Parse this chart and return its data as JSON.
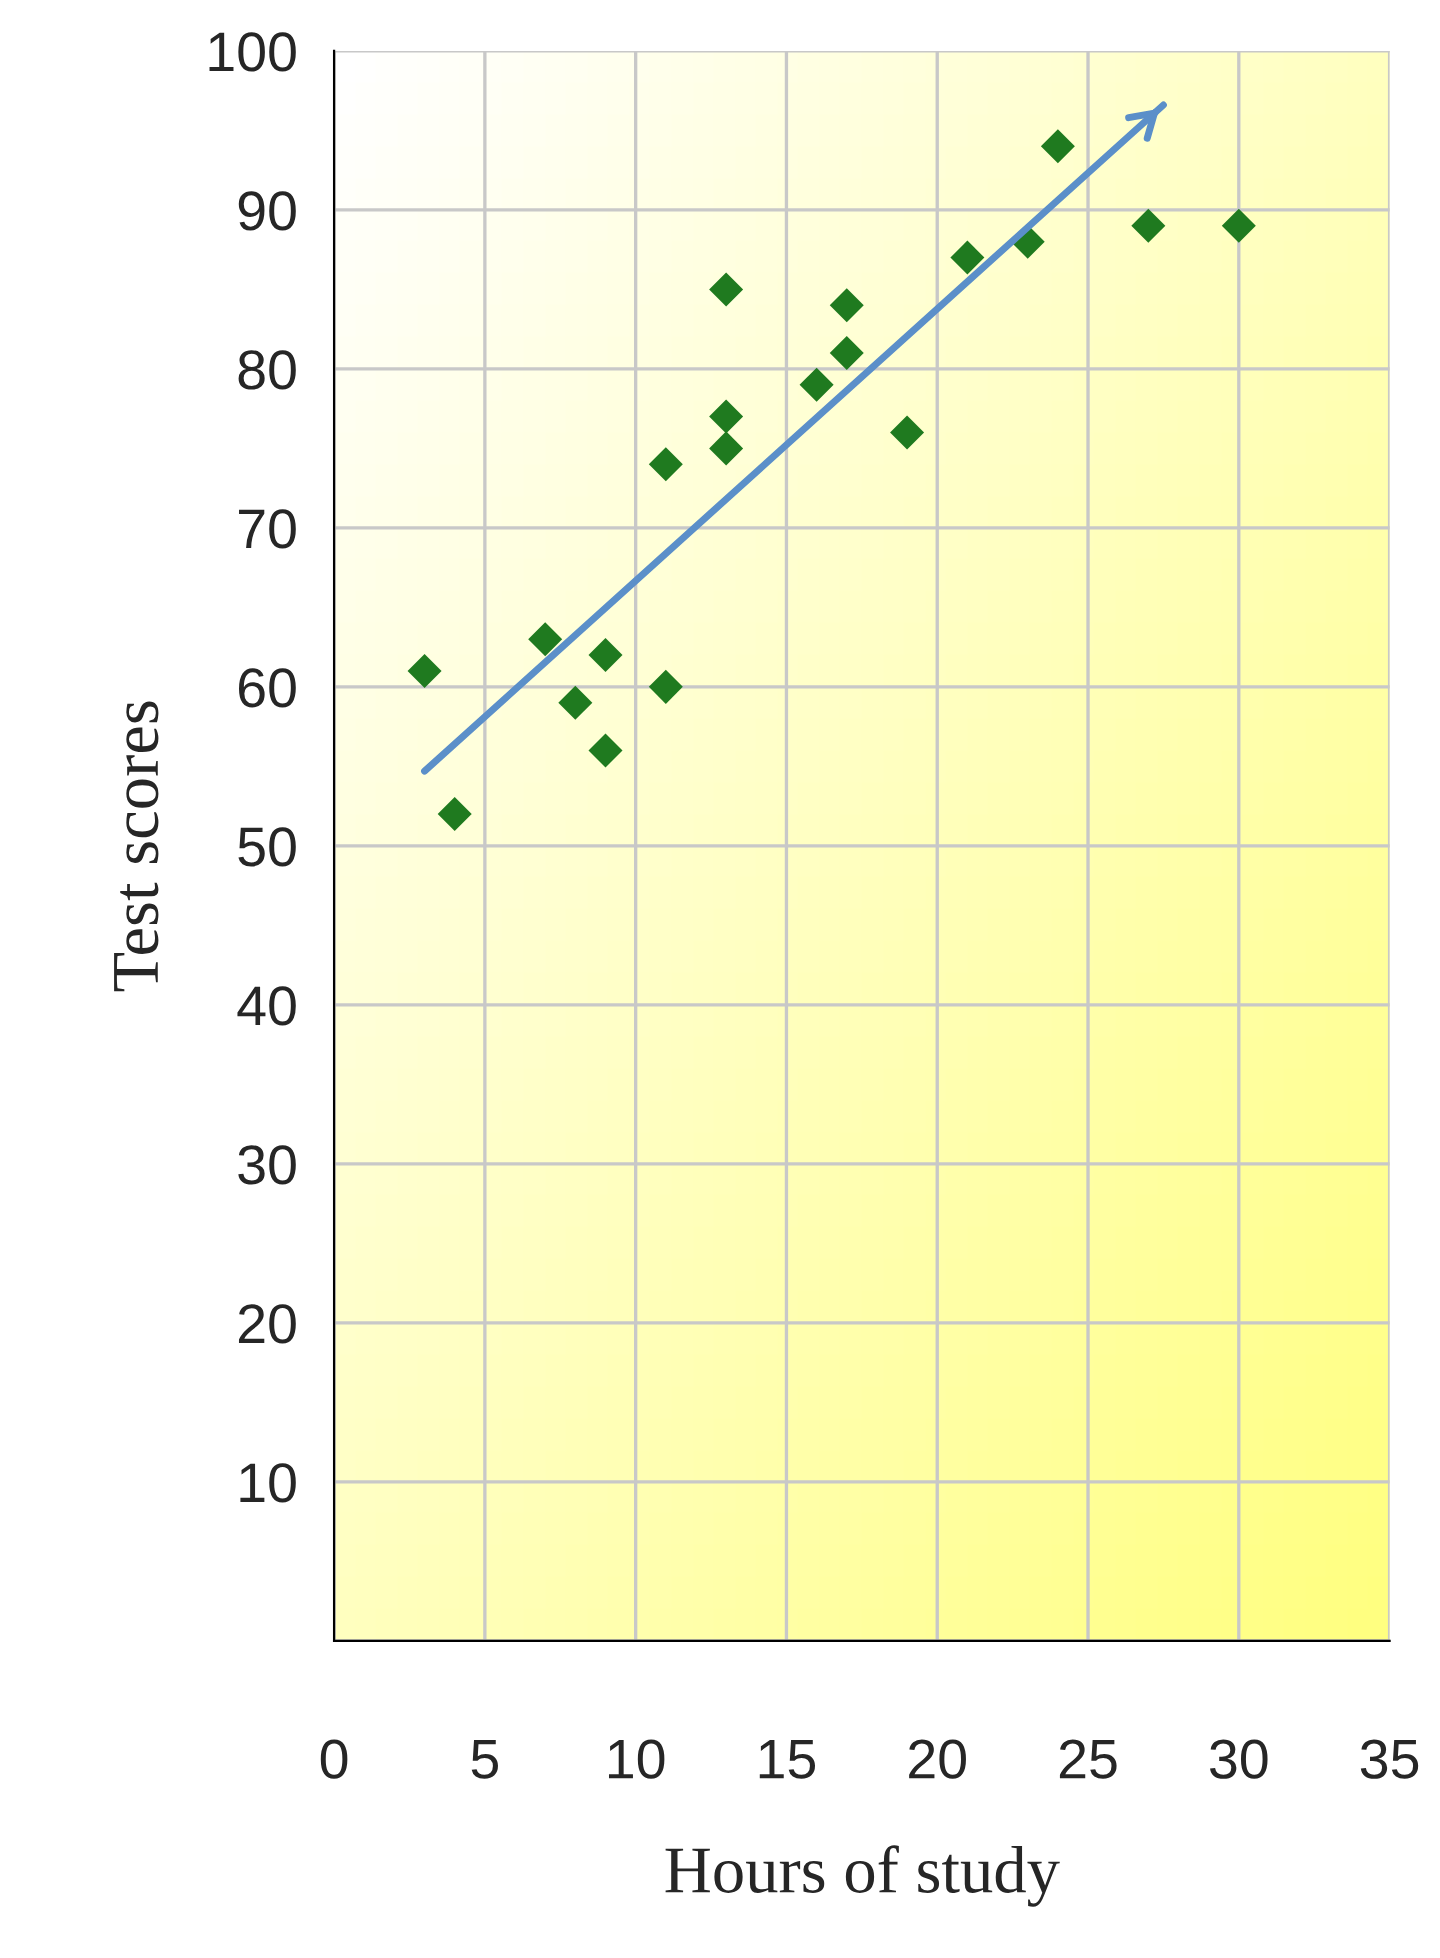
{
  "chart_data": {
    "type": "scatter",
    "xlabel": "Hours of study",
    "ylabel": "Test scores",
    "series": [
      {
        "color": "#1f7a1f",
        "marker": "diamond",
        "x": [
          3,
          4,
          7,
          8,
          9,
          9,
          11,
          11,
          13,
          13,
          13,
          16,
          17,
          17,
          19,
          21,
          23,
          24,
          27,
          30
        ],
        "values": [
          61,
          52,
          63,
          59,
          62,
          56,
          74,
          60,
          85,
          77,
          75,
          79,
          84,
          81,
          76,
          87,
          88,
          94,
          89,
          89
        ]
      },
      {
        "type": "line",
        "color": "#5b8fc9",
        "marker": "none",
        "x": [
          3,
          27.5
        ],
        "values": [
          54.7,
          96.6
        ]
      }
    ],
    "xlim": [
      0,
      35
    ],
    "xticks": [
      0,
      5,
      10,
      15,
      20,
      25,
      30,
      35
    ],
    "ylim": [
      0,
      100
    ],
    "yticks": [
      {
        "value": 0,
        "label": null
      },
      10,
      20,
      30,
      40,
      50,
      60,
      70,
      80,
      90,
      100
    ],
    "grid": true
  }
}
